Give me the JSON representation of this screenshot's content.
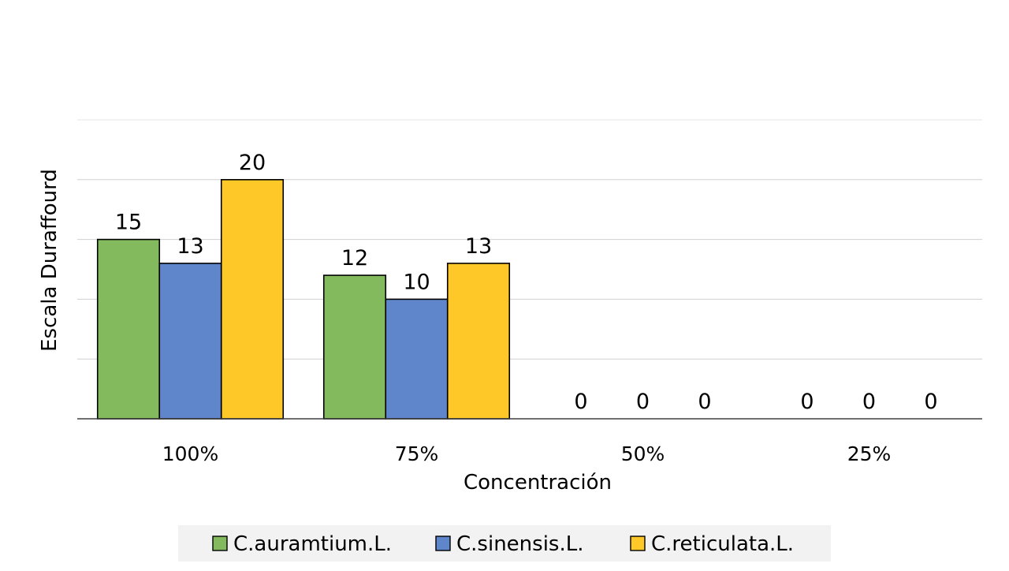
{
  "chart_data": {
    "type": "bar",
    "title": "",
    "xlabel": "Concentración",
    "ylabel": "Escala Duraffourd",
    "categories": [
      "100%",
      "75%",
      "50%",
      "25%"
    ],
    "series": [
      {
        "name": "C.auramtium.L.",
        "values": [
          15,
          12,
          0,
          0
        ],
        "color": "#84ba5e"
      },
      {
        "name": "C.sinensis.L.",
        "values": [
          13,
          10,
          0,
          0
        ],
        "color": "#5f86cb"
      },
      {
        "name": "C.reticulata.L.",
        "values": [
          20,
          13,
          0,
          0
        ],
        "color": "#ffc829"
      }
    ],
    "ylim": [
      0,
      25
    ],
    "grid": true,
    "legend_position": "bottom",
    "data_labels": true
  }
}
